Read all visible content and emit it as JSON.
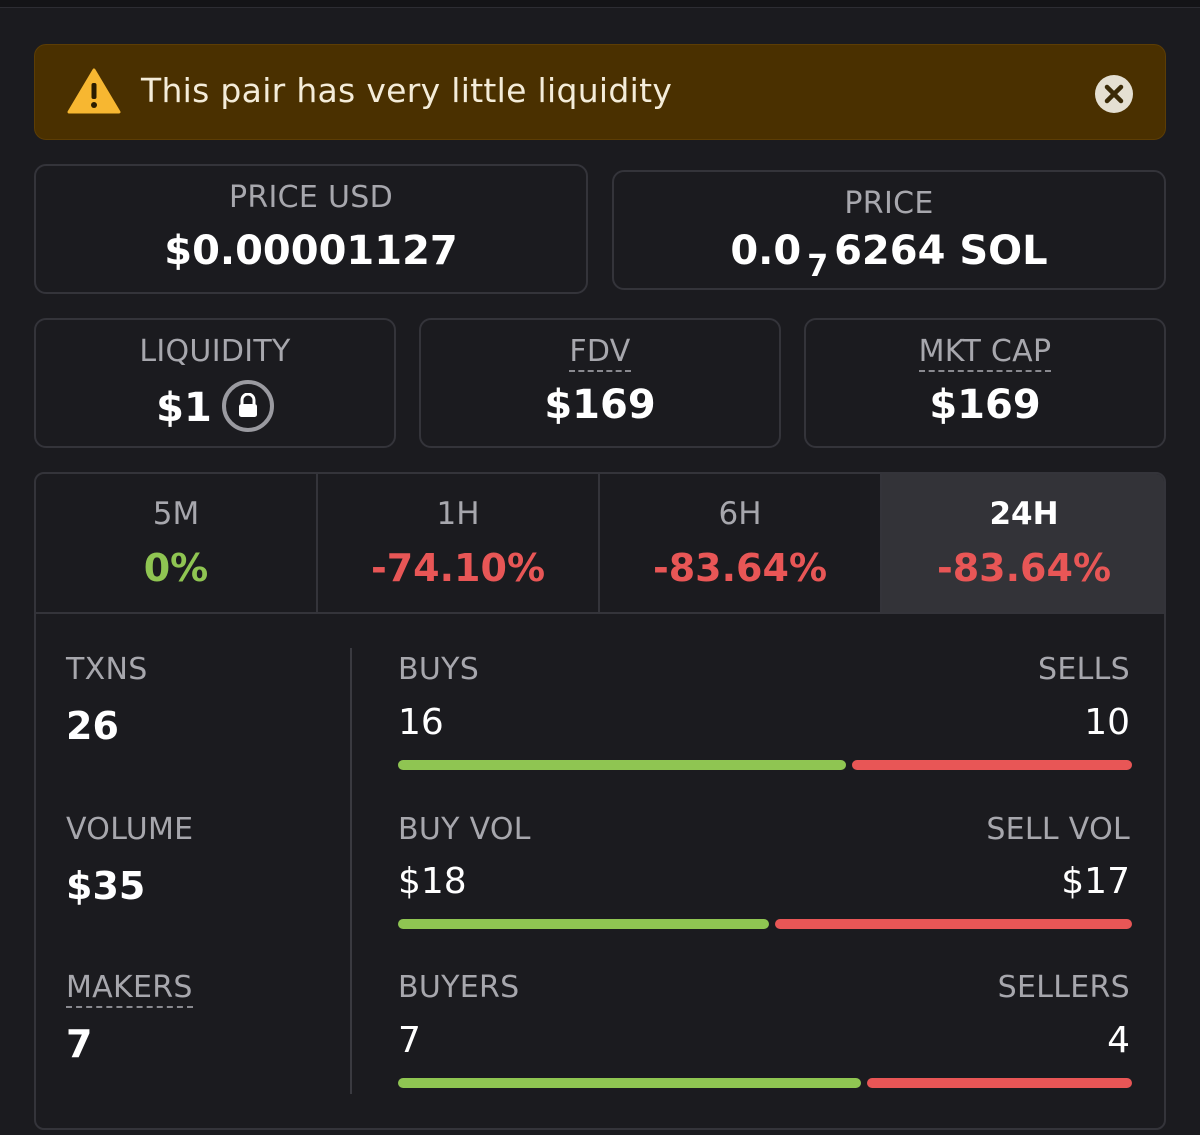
{
  "colors": {
    "positive": "#8fc552",
    "negative": "#e85656",
    "warning_bg": "#4a3000",
    "warning_icon": "#f7b731"
  },
  "warning": {
    "text": "This pair has very little liquidity",
    "icon": "warning-triangle-icon",
    "close_icon": "close-circle-icon"
  },
  "price_usd": {
    "label": "PRICE USD",
    "value": "$0.00001127"
  },
  "price": {
    "label": "PRICE",
    "prefix": "0.0",
    "subscript": "7",
    "suffix": "6264 SOL"
  },
  "liquidity": {
    "label": "LIQUIDITY",
    "value": "$1",
    "icon": "lock-icon"
  },
  "fdv": {
    "label": "FDV",
    "value": "$169"
  },
  "mkt_cap": {
    "label": "MKT CAP",
    "value": "$169"
  },
  "timeframes": [
    {
      "label": "5M",
      "change": "0%",
      "trend": "positive"
    },
    {
      "label": "1H",
      "change": "-74.10%",
      "trend": "negative"
    },
    {
      "label": "6H",
      "change": "-83.64%",
      "trend": "negative"
    },
    {
      "label": "24H",
      "change": "-83.64%",
      "trend": "negative",
      "active": true
    }
  ],
  "stats": {
    "txns": {
      "label": "TXNS",
      "value": "26"
    },
    "volume": {
      "label": "VOLUME",
      "value": "$35"
    },
    "makers": {
      "label": "MAKERS",
      "value": "7"
    }
  },
  "bars": {
    "txns": {
      "left_label": "BUYS",
      "left_value": "16",
      "right_label": "SELLS",
      "right_value": "10",
      "left_fraction": 0.615
    },
    "volume": {
      "left_label": "BUY VOL",
      "left_value": "$18",
      "right_label": "SELL VOL",
      "right_value": "$17",
      "left_fraction": 0.51
    },
    "makers": {
      "left_label": "BUYERS",
      "left_value": "7",
      "right_label": "SELLERS",
      "right_value": "4",
      "left_fraction": 0.636
    }
  }
}
